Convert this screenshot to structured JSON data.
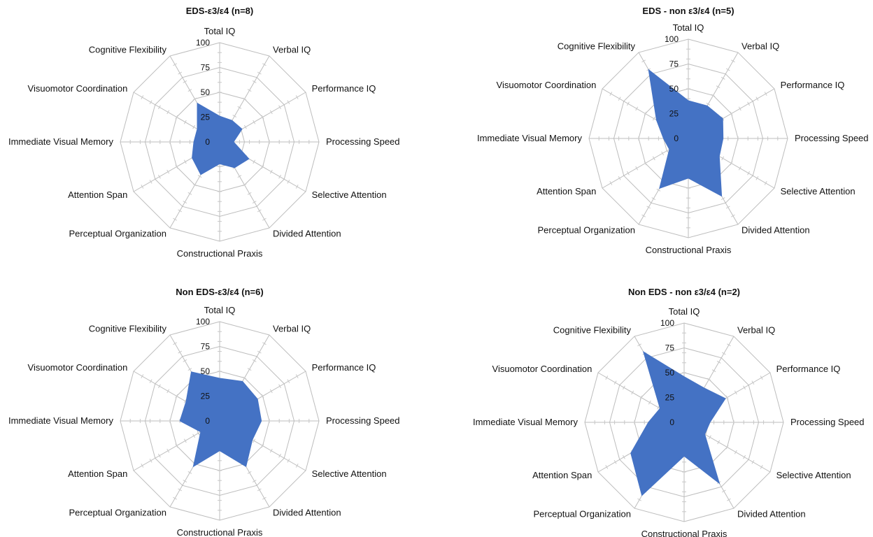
{
  "chart_data": [
    {
      "type": "radar",
      "title": "EDS-ε3/ε4 (n=8)",
      "axes": [
        "Total IQ",
        "Verbal IQ",
        "Performance IQ",
        "Processing Speed",
        "Selective Attention",
        "Divided Attention",
        "Constructional Praxis",
        "Perceptual Organization",
        "Attention Span",
        "Immediate Visual Memory",
        "Visuomotor Coordination",
        "Cognitive Flexibility"
      ],
      "values": [
        26,
        25,
        26,
        14,
        34,
        30,
        22,
        38,
        32,
        26,
        26,
        45
      ],
      "rlim": [
        0,
        100
      ],
      "rticks": [
        "0",
        "25",
        "50",
        "75",
        "100"
      ],
      "grid": true,
      "color": "#4472c4"
    },
    {
      "type": "radar",
      "title": "EDS - non ε3/ε4 (n=5)",
      "axes": [
        "Total IQ",
        "Verbal IQ",
        "Performance IQ",
        "Processing Speed",
        "Selective Attention",
        "Divided Attention",
        "Constructional Praxis",
        "Perceptual Organization",
        "Attention Span",
        "Immediate Visual Memory",
        "Visuomotor Coordination",
        "Cognitive Flexibility"
      ],
      "values": [
        38,
        38,
        40,
        35,
        36,
        67,
        40,
        58,
        22,
        25,
        37,
        80
      ],
      "rlim": [
        0,
        100
      ],
      "rticks": [
        "0",
        "25",
        "50",
        "75",
        "100"
      ],
      "grid": true,
      "color": "#4472c4"
    },
    {
      "type": "radar",
      "title": "Non EDS-ε3/ε4 (n=6)",
      "axes": [
        "Total IQ",
        "Verbal IQ",
        "Performance IQ",
        "Processing Speed",
        "Selective Attention",
        "Divided Attention",
        "Constructional Praxis",
        "Perceptual Organization",
        "Attention Span",
        "Immediate Visual Memory",
        "Visuomotor Coordination",
        "Cognitive Flexibility"
      ],
      "values": [
        43,
        46,
        44,
        42,
        38,
        53,
        30,
        53,
        22,
        40,
        39,
        57
      ],
      "rlim": [
        0,
        100
      ],
      "rticks": [
        "0",
        "25",
        "50",
        "75",
        "100"
      ],
      "grid": true,
      "color": "#4472c4"
    },
    {
      "type": "radar",
      "title": "Non EDS - non ε3/ε4 (n=2)",
      "axes": [
        "Total IQ",
        "Verbal IQ",
        "Performance IQ",
        "Processing Speed",
        "Selective Attention",
        "Divided Attention",
        "Constructional Praxis",
        "Perceptual Organization",
        "Attention Span",
        "Immediate Visual Memory",
        "Visuomotor Coordination",
        "Cognitive Flexibility"
      ],
      "values": [
        46,
        40,
        48,
        26,
        24,
        71,
        34,
        85,
        62,
        36,
        28,
        82
      ],
      "rlim": [
        0,
        100
      ],
      "rticks": [
        "0",
        "25",
        "50",
        "75",
        "100"
      ],
      "grid": true,
      "color": "#4472c4"
    }
  ]
}
